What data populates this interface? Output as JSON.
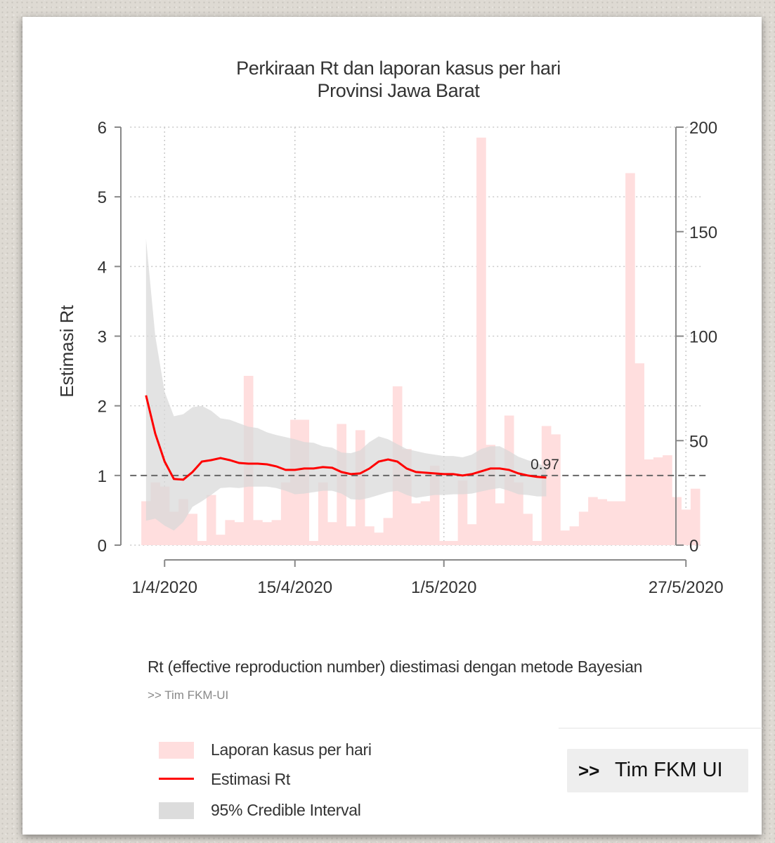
{
  "chart_data": {
    "type": "bar+line",
    "title": "Perkiraan Rt dan laporan kasus per hari",
    "subtitle": "Provinsi Jawa Barat",
    "ylabel_left": "Estimasi Rt",
    "ylim_left": [
      0,
      6
    ],
    "yticks_left": [
      "0",
      "1",
      "2",
      "3",
      "4",
      "5",
      "6"
    ],
    "ylim_right": [
      0,
      200
    ],
    "yticks_right": [
      "0",
      "50",
      "100",
      "150",
      "200"
    ],
    "x_tick_labels": [
      "1/4/2020",
      "15/4/2020",
      "1/5/2020",
      "27/5/2020"
    ],
    "x_tick_days": [
      3,
      17,
      33,
      59
    ],
    "x_start_date": "2020-03-29",
    "gridlines": "dotted",
    "reference_line": 1,
    "end_label": "0.97",
    "cases": {
      "name": "Laporan kasus per hari",
      "color": "#ffdede",
      "values": [
        21,
        30,
        28,
        16,
        22,
        15,
        2,
        24,
        5,
        12,
        11,
        81,
        12,
        11,
        12,
        30,
        60,
        60,
        2,
        30,
        11,
        58,
        9,
        55,
        9,
        6,
        13,
        76,
        46,
        20,
        21,
        38,
        2,
        2,
        31,
        10,
        195,
        48,
        20,
        62,
        30,
        15,
        2,
        57,
        53,
        7,
        9,
        16,
        23,
        22,
        21,
        21,
        178,
        87,
        41,
        42,
        43,
        23,
        17,
        27
      ]
    },
    "rt": {
      "name": "Estimasi Rt",
      "color": "#ff0000",
      "values": [
        2.15,
        1.6,
        1.2,
        0.95,
        0.94,
        1.05,
        1.2,
        1.22,
        1.25,
        1.22,
        1.18,
        1.17,
        1.17,
        1.16,
        1.13,
        1.08,
        1.08,
        1.1,
        1.1,
        1.12,
        1.11,
        1.05,
        1.02,
        1.03,
        1.1,
        1.2,
        1.23,
        1.2,
        1.1,
        1.05,
        1.04,
        1.03,
        1.02,
        1.02,
        1.0,
        1.02,
        1.06,
        1.1,
        1.1,
        1.08,
        1.03,
        1.0,
        0.98,
        0.97
      ]
    },
    "ci": {
      "name": "95% Credible Interval",
      "color": "#dcdcdc",
      "upper": [
        4.4,
        3.0,
        2.2,
        1.85,
        1.88,
        1.98,
        2.0,
        1.93,
        1.82,
        1.8,
        1.75,
        1.7,
        1.68,
        1.62,
        1.58,
        1.55,
        1.52,
        1.48,
        1.47,
        1.42,
        1.4,
        1.33,
        1.32,
        1.36,
        1.48,
        1.56,
        1.52,
        1.45,
        1.38,
        1.35,
        1.32,
        1.3,
        1.28,
        1.28,
        1.26,
        1.3,
        1.38,
        1.42,
        1.42,
        1.35,
        1.27,
        1.22,
        1.18,
        1.12
      ],
      "lower": [
        0.35,
        0.38,
        0.28,
        0.21,
        0.33,
        0.55,
        0.63,
        0.72,
        0.82,
        0.83,
        0.82,
        0.84,
        0.84,
        0.84,
        0.82,
        0.78,
        0.73,
        0.74,
        0.76,
        0.78,
        0.78,
        0.74,
        0.66,
        0.65,
        0.68,
        0.72,
        0.76,
        0.78,
        0.72,
        0.68,
        0.7,
        0.72,
        0.72,
        0.73,
        0.73,
        0.74,
        0.77,
        0.8,
        0.82,
        0.78,
        0.73,
        0.72,
        0.7,
        0.7
      ]
    },
    "legend_position": "bottom-left"
  },
  "caption": "Rt (effective reproduction number) diestimasi dengan metode Bayesian",
  "source": ">> Tim FKM-UI",
  "legend": {
    "cases_label": "Laporan kasus per hari",
    "rt_label": "Estimasi Rt",
    "ci_label": "95% Credible Interval"
  },
  "badge": {
    "arrows": ">>",
    "text": "Tim FKM UI"
  }
}
